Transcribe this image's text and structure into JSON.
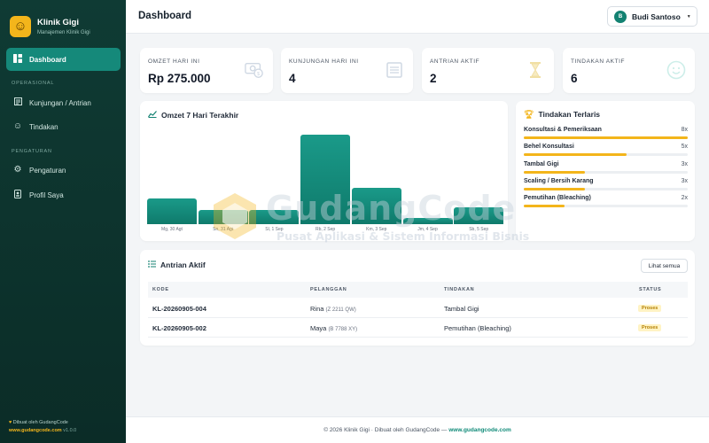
{
  "brand": {
    "name": "Klinik Gigi",
    "subtitle": "Manajemen Klinik Gigi",
    "logo_icon": "smile-icon"
  },
  "sidebar": {
    "active_item": "Dashboard",
    "sections": [
      {
        "title": "OPERASIONAL",
        "items": [
          {
            "label": "Kunjungan / Antrian",
            "icon": "list-icon"
          },
          {
            "label": "Tindakan",
            "icon": "smile-icon"
          }
        ]
      },
      {
        "title": "PENGATURAN",
        "items": [
          {
            "label": "Pengaturan",
            "icon": "gear-icon"
          },
          {
            "label": "Profil Saya",
            "icon": "id-badge-icon"
          }
        ]
      }
    ],
    "footer_made_by": "Dibuat oleh GudangCode",
    "footer_link": "www.gudangcode.com",
    "footer_version": "v1.0.0"
  },
  "header": {
    "title": "Dashboard",
    "user_initial": "B",
    "user_name": "Budi Santoso"
  },
  "stats": [
    {
      "label": "OMZET HARI INI",
      "value": "Rp 275.000",
      "icon": "money-icon"
    },
    {
      "label": "KUNJUNGAN HARI INI",
      "value": "4",
      "icon": "document-icon"
    },
    {
      "label": "ANTRIAN AKTIF",
      "value": "2",
      "icon": "hourglass-icon"
    },
    {
      "label": "TINDAKAN AKTIF",
      "value": "6",
      "icon": "smile-icon"
    }
  ],
  "chart_card": {
    "title": "Omzet 7 Hari Terakhir",
    "icon": "chart-line-icon"
  },
  "chart_data": {
    "type": "bar",
    "title": "Omzet 7 Hari Terakhir",
    "categories": [
      "Mg, 30 Agt",
      "Sn, 31 Agt",
      "Sl, 1 Sep",
      "Rb, 2 Sep",
      "Km, 3 Sep",
      "Jm, 4 Sep",
      "Sb, 5 Sep"
    ],
    "values": [
      29,
      16,
      16,
      100,
      41,
      7,
      19
    ],
    "ylim": [
      0,
      100
    ],
    "grid": false,
    "legend": "none",
    "color": "#138272"
  },
  "tindakan": {
    "title": "Tindakan Terlaris",
    "icon": "trophy-icon",
    "items": [
      {
        "name": "Konsultasi & Pemeriksaan",
        "count": "8x",
        "ratio": 1.0
      },
      {
        "name": "Behel Konsultasi",
        "count": "5x",
        "ratio": 0.625
      },
      {
        "name": "Tambal Gigi",
        "count": "3x",
        "ratio": 0.375
      },
      {
        "name": "Scaling / Bersih Karang",
        "count": "3x",
        "ratio": 0.375
      },
      {
        "name": "Pemutihan (Bleaching)",
        "count": "2x",
        "ratio": 0.25
      }
    ]
  },
  "antrian": {
    "title": "Antrian Aktif",
    "icon": "list-icon",
    "see_all": "Lihat semua",
    "columns": [
      "KODE",
      "PELANGGAN",
      "TINDAKAN",
      "STATUS"
    ],
    "rows": [
      {
        "kode": "KL-20260905-004",
        "pelanggan": "Rina",
        "plat": "(Z 2211 QW)",
        "tindakan": "Tambal Gigi",
        "status": "Proses"
      },
      {
        "kode": "KL-20260905-002",
        "pelanggan": "Maya",
        "plat": "(B 7788 XY)",
        "tindakan": "Pemutihan (Bleaching)",
        "status": "Proses"
      }
    ]
  },
  "footer": {
    "text": "© 2026 Klinik Gigi · Dibuat oleh GudangCode —",
    "link": "www.gudangcode.com"
  },
  "watermark": {
    "title": "GudangCode",
    "subtitle": "Pusat Aplikasi & Sistem Informasi Bisnis"
  },
  "colors": {
    "sidebar": "#0f3b34",
    "accent": "#138272",
    "gold": "#f3b51b",
    "badge_bg": "#fff3c4",
    "badge_text": "#b58105"
  }
}
